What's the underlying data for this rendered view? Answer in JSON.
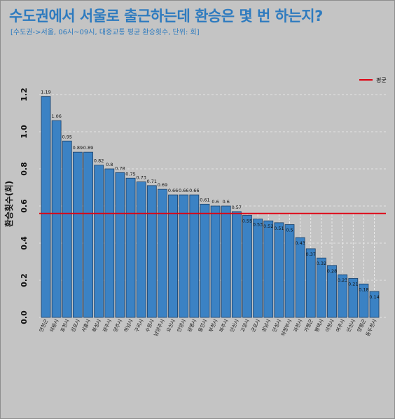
{
  "title": "수도권에서 서울로 출근하는데 환승은 몇 번 하는지?",
  "subtitle": "[수도권->서울, 06시~09시, 대중교통 평균 환승횟수, 단위: 회]",
  "colors": {
    "bar": "#3b82c4",
    "bar_stroke": "#1b3f66",
    "average_line": "#e0000f",
    "grid": "#eeeeee",
    "background": "#c4c4c4",
    "title": "#2e7bbf"
  },
  "chart_data": {
    "type": "bar",
    "ylabel": "환승횟수(회)",
    "xlabel": "",
    "ylim": [
      0,
      1.2
    ],
    "yticks": [
      "0.0",
      "0.2",
      "0.4",
      "0.6",
      "0.8",
      "1.0",
      "1.2"
    ],
    "grid": true,
    "legend_position": "top-right",
    "average": {
      "label": "평균",
      "value": 0.56
    },
    "categories": [
      "연천군",
      "의왕시",
      "포천시",
      "김포시",
      "시흥시",
      "화성시",
      "광주시",
      "양주시",
      "하남시",
      "구리시",
      "수원시",
      "남양주시",
      "오산시",
      "안양시",
      "광명시",
      "용인시",
      "부천시",
      "파주시",
      "안산시",
      "고양시",
      "군포시",
      "성남시",
      "안성시",
      "의정부시",
      "과천시",
      "가평군",
      "평택시",
      "이천시",
      "여주시",
      "안산시",
      "양평군",
      "동두천시"
    ],
    "values": [
      1.19,
      1.06,
      0.95,
      0.89,
      0.89,
      0.82,
      0.8,
      0.78,
      0.75,
      0.73,
      0.71,
      0.69,
      0.66,
      0.66,
      0.66,
      0.61,
      0.6,
      0.6,
      0.57,
      0.55,
      0.53,
      0.52,
      0.51,
      0.5,
      0.43,
      0.37,
      0.32,
      0.28,
      0.23,
      0.21,
      0.18,
      0.14
    ],
    "value_labels": [
      "1.19",
      "1.06",
      "0.95",
      "0.89",
      "0.89",
      "0.82",
      "0.8",
      "0.78",
      "0.75",
      "0.73",
      "0.71",
      "0.69",
      "0.66",
      "0.66",
      "0.66",
      "0.61",
      "0.6",
      "0.6",
      "0.57",
      "0.55",
      "0.53",
      "0.52",
      "0.51",
      "0.5",
      "0.43",
      "0.37",
      "0.32",
      "0.28",
      "0.23",
      "0.21",
      "0.18",
      "0.14"
    ]
  }
}
